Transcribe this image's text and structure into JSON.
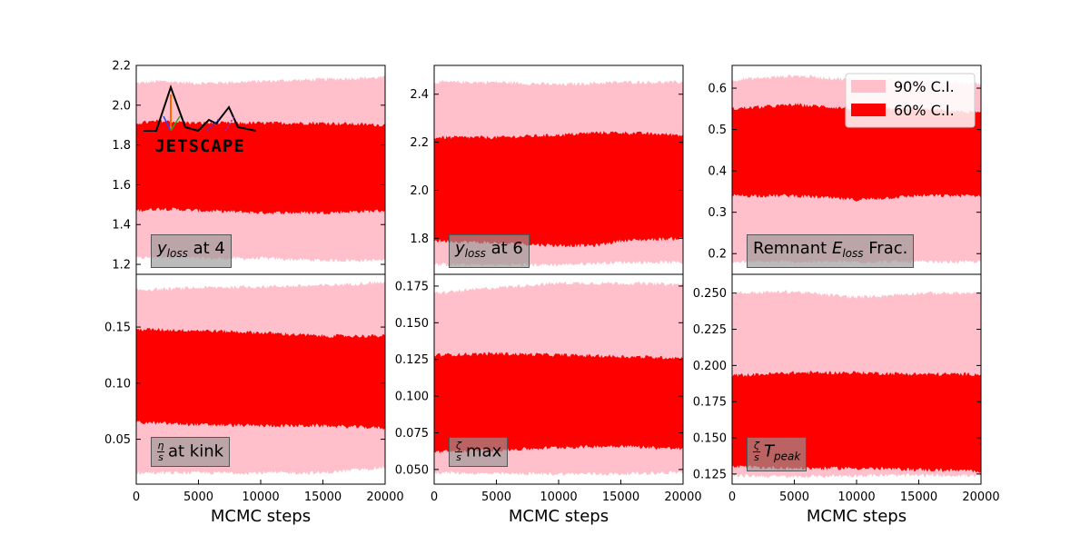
{
  "colors": {
    "ci90": "#ffc0cb",
    "ci60": "#ff0000"
  },
  "legend": {
    "items": [
      {
        "label": "90% C.I.",
        "color": "#ffc0cb"
      },
      {
        "label": "60% C.I.",
        "color": "#ff0000"
      }
    ],
    "location": "top-right"
  },
  "logo": {
    "text": "JETSCAPE"
  },
  "chart_data": [
    {
      "type": "area",
      "panel": "top-left",
      "annotation": {
        "main": "y",
        "sub": "loss",
        "suffix": "at 4"
      },
      "xlim": [
        0,
        20000
      ],
      "ylim": [
        1.15,
        2.2
      ],
      "xticks": [],
      "yticks": [
        1.2,
        1.4,
        1.6,
        1.8,
        2.0,
        2.2
      ],
      "ytick_labels": [
        "1.2",
        "1.4",
        "1.6",
        "1.8",
        "2.0",
        "2.2"
      ],
      "xlabel": "",
      "series": [
        {
          "name": "90% C.I.",
          "x": [
            0,
            2000,
            5000,
            10000,
            15000,
            20000
          ],
          "low": [
            1.23,
            1.24,
            1.23,
            1.23,
            1.22,
            1.22
          ],
          "high": [
            2.11,
            2.12,
            2.11,
            2.12,
            2.13,
            2.14
          ]
        },
        {
          "name": "60% C.I.",
          "x": [
            0,
            2000,
            5000,
            10000,
            15000,
            20000
          ],
          "low": [
            1.47,
            1.48,
            1.47,
            1.46,
            1.46,
            1.47
          ],
          "high": [
            1.91,
            1.92,
            1.91,
            1.91,
            1.91,
            1.9
          ]
        }
      ]
    },
    {
      "type": "area",
      "panel": "top-middle",
      "annotation": {
        "main": "y",
        "sub": "loss",
        "suffix": "at 6"
      },
      "xlim": [
        0,
        20000
      ],
      "ylim": [
        1.65,
        2.52
      ],
      "xticks": [],
      "yticks": [
        1.8,
        2.0,
        2.2,
        2.4
      ],
      "ytick_labels": [
        "1.8",
        "2.0",
        "2.2",
        "2.4"
      ],
      "xlabel": "",
      "series": [
        {
          "name": "90% C.I.",
          "x": [
            0,
            5000,
            10000,
            15000,
            20000
          ],
          "low": [
            1.69,
            1.69,
            1.69,
            1.7,
            1.7
          ],
          "high": [
            2.45,
            2.45,
            2.44,
            2.45,
            2.45
          ]
        },
        {
          "name": "60% C.I.",
          "x": [
            0,
            5000,
            10000,
            13000,
            15000,
            20000
          ],
          "low": [
            1.79,
            1.78,
            1.77,
            1.77,
            1.79,
            1.8
          ],
          "high": [
            2.22,
            2.22,
            2.23,
            2.24,
            2.24,
            2.23
          ]
        }
      ]
    },
    {
      "type": "area",
      "panel": "top-right",
      "annotation": {
        "main": "Remnant",
        "e": "E",
        "sub": "loss",
        "suffix": "Frac."
      },
      "xlim": [
        0,
        20000
      ],
      "ylim": [
        0.15,
        0.655
      ],
      "xticks": [],
      "yticks": [
        0.2,
        0.3,
        0.4,
        0.5,
        0.6
      ],
      "ytick_labels": [
        "0.2",
        "0.3",
        "0.4",
        "0.5",
        "0.6"
      ],
      "xlabel": "",
      "series": [
        {
          "name": "90% C.I.",
          "x": [
            0,
            5000,
            10000,
            15000,
            20000
          ],
          "low": [
            0.18,
            0.18,
            0.18,
            0.18,
            0.18
          ],
          "high": [
            0.62,
            0.63,
            0.62,
            0.62,
            0.61
          ]
        },
        {
          "name": "60% C.I.",
          "x": [
            0,
            5000,
            10000,
            15000,
            20000
          ],
          "low": [
            0.34,
            0.34,
            0.33,
            0.34,
            0.34
          ],
          "high": [
            0.55,
            0.56,
            0.55,
            0.55,
            0.54
          ]
        }
      ]
    },
    {
      "type": "area",
      "panel": "bottom-left",
      "annotation": {
        "frac_top": "η",
        "frac_bot": "s",
        "suffix": "at kink"
      },
      "xlim": [
        0,
        20000
      ],
      "ylim": [
        0.01,
        0.197
      ],
      "xticks": [
        0,
        5000,
        10000,
        15000,
        20000
      ],
      "xtick_labels": [
        "0",
        "5000",
        "10000",
        "15000",
        "20000"
      ],
      "yticks": [
        0.05,
        0.1,
        0.15
      ],
      "ytick_labels": [
        "0.05",
        "0.10",
        "0.15"
      ],
      "xlabel": "MCMC steps",
      "series": [
        {
          "name": "90% C.I.",
          "x": [
            0,
            5000,
            10000,
            15000,
            20000
          ],
          "low": [
            0.02,
            0.02,
            0.02,
            0.02,
            0.025
          ],
          "high": [
            0.183,
            0.185,
            0.186,
            0.187,
            0.19
          ]
        },
        {
          "name": "60% C.I.",
          "x": [
            0,
            5000,
            10000,
            15000,
            20000
          ],
          "low": [
            0.065,
            0.063,
            0.062,
            0.062,
            0.06
          ],
          "high": [
            0.148,
            0.147,
            0.145,
            0.142,
            0.142
          ]
        }
      ]
    },
    {
      "type": "area",
      "panel": "bottom-middle",
      "annotation": {
        "frac_top": "ζ",
        "frac_bot": "s",
        "suffix": "max"
      },
      "xlim": [
        0,
        20000
      ],
      "ylim": [
        0.04,
        0.183
      ],
      "xticks": [
        0,
        5000,
        10000,
        15000,
        20000
      ],
      "xtick_labels": [
        "0",
        "5000",
        "10000",
        "15000",
        "20000"
      ],
      "yticks": [
        0.05,
        0.075,
        0.1,
        0.125,
        0.15,
        0.175
      ],
      "ytick_labels": [
        "0.050",
        "0.075",
        "0.100",
        "0.125",
        "0.150",
        "0.175"
      ],
      "xlabel": "MCMC steps",
      "series": [
        {
          "name": "90% C.I.",
          "x": [
            0,
            5000,
            10000,
            15000,
            20000
          ],
          "low": [
            0.048,
            0.047,
            0.047,
            0.047,
            0.048
          ],
          "high": [
            0.17,
            0.174,
            0.177,
            0.177,
            0.176
          ]
        },
        {
          "name": "60% C.I.",
          "x": [
            0,
            5000,
            10000,
            15000,
            20000
          ],
          "low": [
            0.062,
            0.063,
            0.065,
            0.066,
            0.064
          ],
          "high": [
            0.128,
            0.129,
            0.128,
            0.127,
            0.126
          ]
        }
      ]
    },
    {
      "type": "area",
      "panel": "bottom-right",
      "annotation": {
        "frac_top": "ζ",
        "frac_bot": "s",
        "e": "T",
        "sub": "peak"
      },
      "xlim": [
        0,
        20000
      ],
      "ylim": [
        0.118,
        0.263
      ],
      "xticks": [
        0,
        5000,
        10000,
        15000,
        20000
      ],
      "xtick_labels": [
        "0",
        "5000",
        "10000",
        "15000",
        "20000"
      ],
      "yticks": [
        0.125,
        0.15,
        0.175,
        0.2,
        0.225,
        0.25
      ],
      "ytick_labels": [
        "0.125",
        "0.150",
        "0.175",
        "0.200",
        "0.225",
        "0.250"
      ],
      "xlabel": "MCMC steps",
      "series": [
        {
          "name": "90% C.I.",
          "x": [
            0,
            5000,
            10000,
            15000,
            20000
          ],
          "low": [
            0.124,
            0.123,
            0.124,
            0.124,
            0.124
          ],
          "high": [
            0.25,
            0.251,
            0.247,
            0.25,
            0.25
          ]
        },
        {
          "name": "60% C.I.",
          "x": [
            0,
            5000,
            10000,
            15000,
            20000
          ],
          "low": [
            0.13,
            0.129,
            0.129,
            0.128,
            0.127
          ],
          "high": [
            0.193,
            0.195,
            0.195,
            0.194,
            0.194
          ]
        }
      ]
    }
  ]
}
